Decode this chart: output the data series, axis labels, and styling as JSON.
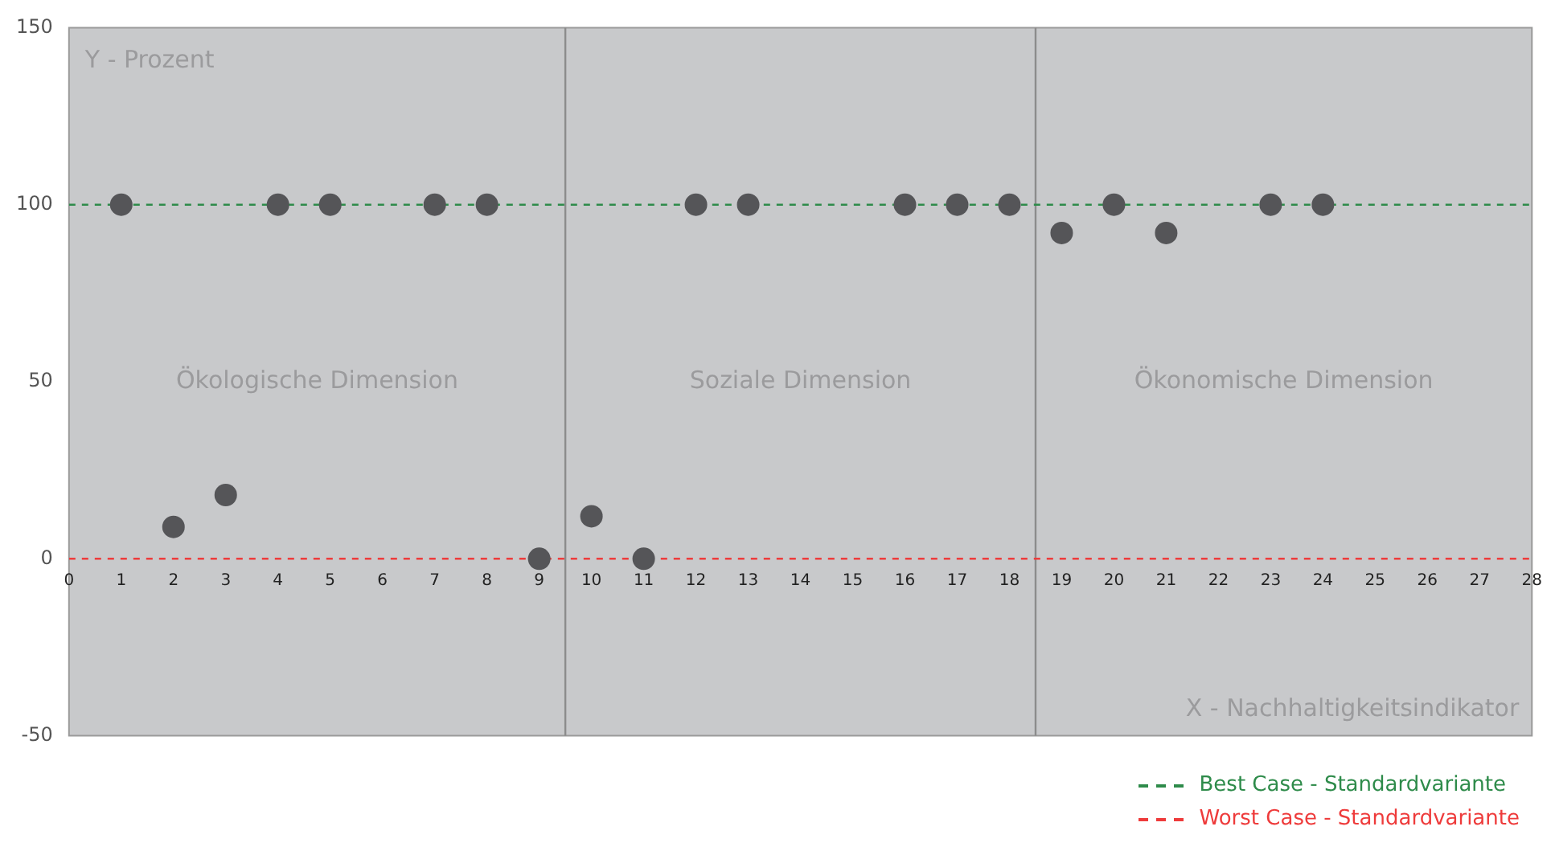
{
  "chart_data": {
    "type": "scatter",
    "xlabel": "X - Nachhaltigkeitsindikator",
    "ylabel": "Y - Prozent",
    "xlim": [
      0,
      28
    ],
    "xticks": [
      0,
      1,
      2,
      3,
      4,
      5,
      6,
      7,
      8,
      9,
      10,
      11,
      12,
      13,
      14,
      15,
      16,
      17,
      18,
      19,
      20,
      21,
      22,
      23,
      24,
      25,
      26,
      27,
      28
    ],
    "ylim": [
      -50,
      150
    ],
    "yticks": [
      -50,
      0,
      50,
      100,
      150
    ],
    "grid": false,
    "marker": "circle",
    "legend": "bottom right",
    "series": [
      {
        "color": "#555558",
        "x": [
          1,
          2,
          3,
          4,
          5,
          7,
          8,
          9,
          10,
          11,
          12,
          13,
          16,
          17,
          18,
          19,
          20,
          21,
          23,
          24
        ],
        "values": [
          100,
          9,
          18,
          100,
          100,
          100,
          100,
          0,
          12,
          0,
          100,
          100,
          100,
          100,
          100,
          92,
          100,
          92,
          100,
          100
        ]
      },
      {
        "type": "line",
        "name": "Best Case - Standardvariante",
        "color": "#2e8b4a",
        "line_style": "dashed",
        "marker": "none",
        "x": [
          0,
          28
        ],
        "values": [
          100,
          100
        ]
      },
      {
        "type": "line",
        "name": "Worst Case - Standardvariante",
        "color": "#ee3b3b",
        "line_style": "dashed",
        "marker": "none",
        "x": [
          0,
          28
        ],
        "values": [
          0,
          0
        ]
      }
    ],
    "ref_lines": [
      {
        "axis": "x",
        "value": 9.5,
        "color": "#8c8c8c"
      },
      {
        "axis": "x",
        "value": 18.5,
        "color": "#8c8c8c"
      }
    ],
    "annotations": [
      "Ökologische Dimension",
      "Soziale Dimension",
      "Ökonomische Dimension"
    ]
  }
}
